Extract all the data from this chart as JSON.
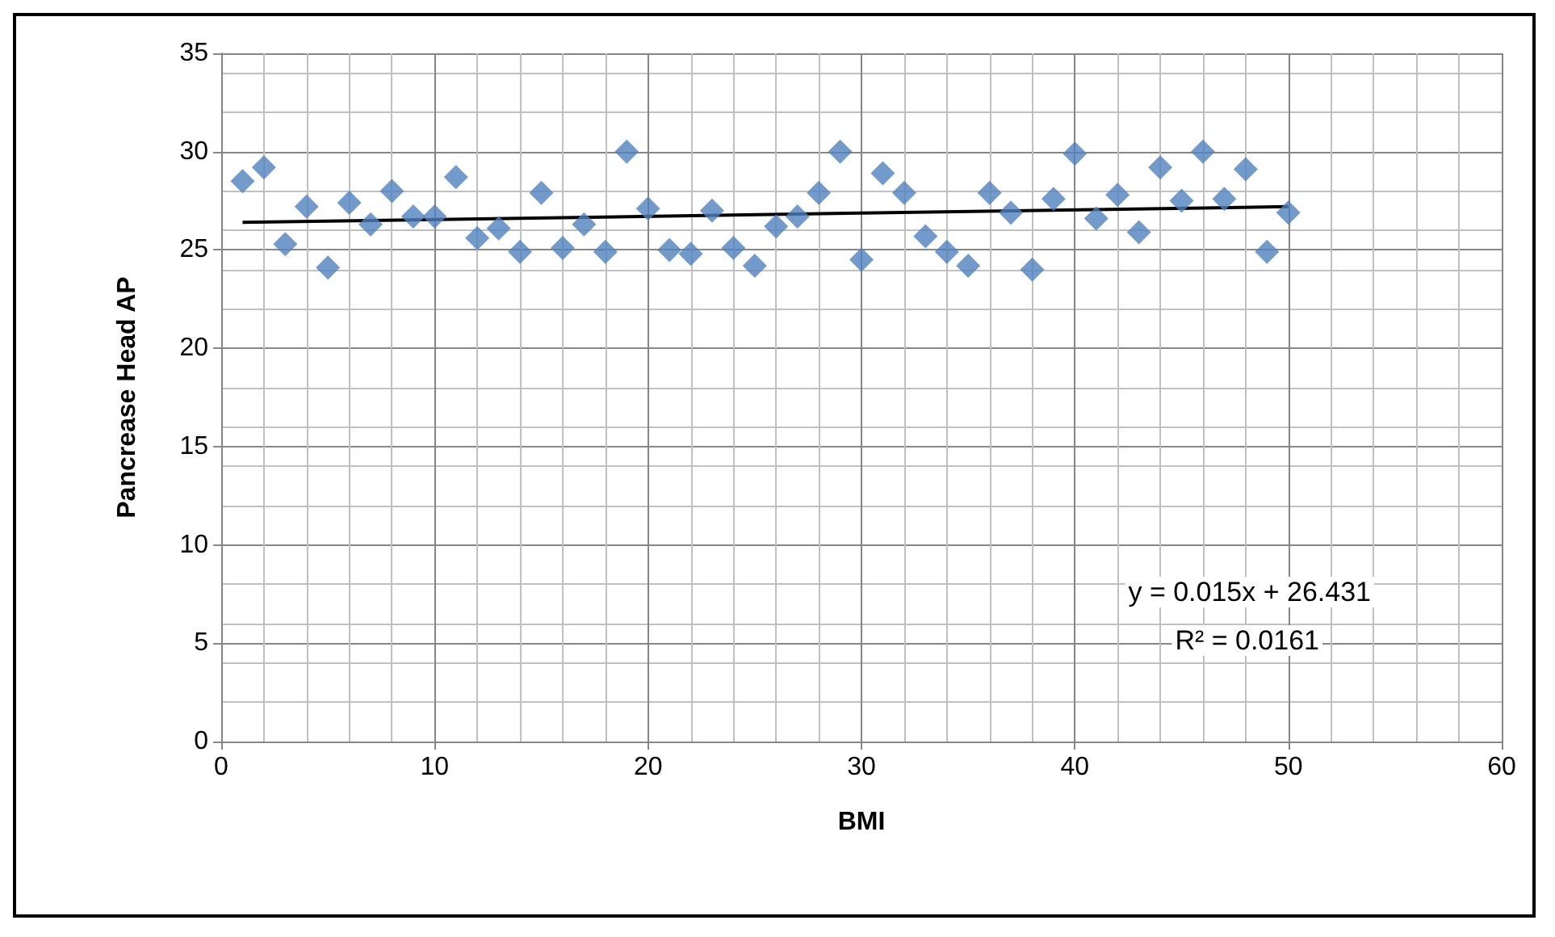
{
  "chart_data": {
    "type": "scatter",
    "xlabel": "BMI",
    "ylabel": "Pancrease Head AP",
    "xlim": [
      0,
      60
    ],
    "xticks": [
      0,
      10,
      20,
      30,
      40,
      50,
      60
    ],
    "ylim": [
      0,
      35
    ],
    "yticks": [
      0,
      5,
      10,
      15,
      20,
      25,
      30,
      35
    ],
    "grid": true,
    "series": [
      {
        "color": "#4f81bd",
        "marker": "diamond",
        "x": [
          1,
          2,
          3,
          4,
          5,
          6,
          7,
          8,
          9,
          10,
          11,
          12,
          13,
          14,
          15,
          16,
          17,
          18,
          19,
          20,
          21,
          22,
          23,
          24,
          25,
          26,
          27,
          28,
          29,
          30,
          31,
          32,
          33,
          34,
          35,
          36,
          37,
          38,
          39,
          40,
          41,
          42,
          43,
          44,
          45,
          46,
          47,
          48,
          49,
          50
        ],
        "values": [
          28.5,
          29.2,
          25.3,
          27.2,
          24.1,
          27.4,
          26.3,
          28.0,
          26.7,
          26.7,
          28.7,
          25.6,
          26.1,
          24.9,
          27.9,
          25.1,
          26.3,
          24.9,
          30.0,
          27.1,
          25.0,
          24.8,
          27.0,
          25.1,
          24.2,
          26.2,
          26.7,
          27.9,
          30.0,
          24.5,
          28.9,
          27.9,
          25.7,
          24.9,
          24.2,
          27.9,
          26.9,
          24.0,
          27.6,
          29.9,
          26.6,
          27.8,
          25.9,
          29.2,
          27.5,
          30.0,
          27.6,
          29.1,
          24.9,
          26.9
        ]
      },
      {
        "type": "line",
        "color": "#000000",
        "marker": "none",
        "x": [
          1,
          50
        ],
        "values": [
          26.4,
          27.2
        ]
      }
    ],
    "annotations": [
      "y = 0.015x + 26.431",
      "R² = 0.0161"
    ]
  }
}
